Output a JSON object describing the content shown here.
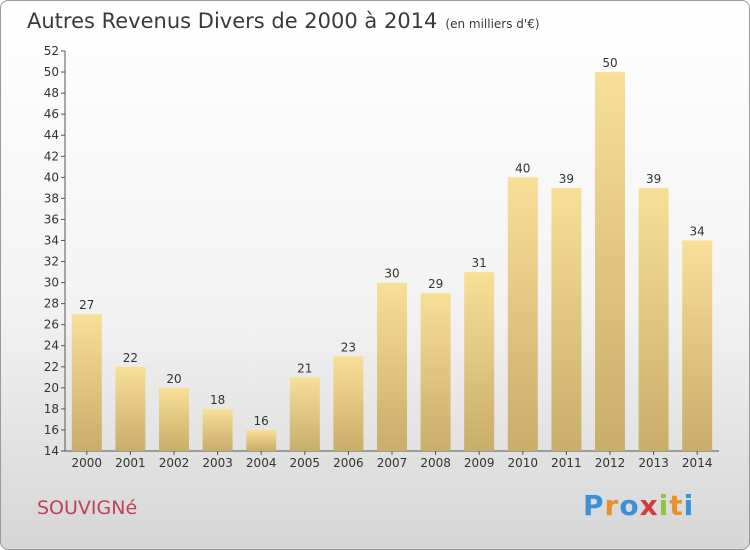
{
  "header": {
    "title": "Autres Revenus Divers de 2000 à 2014",
    "unit": "(en milliers d'€)"
  },
  "footer": {
    "location": "SOUVIGNé",
    "logo_text": "Proxiti"
  },
  "colors": {
    "bar_top": "#f8df98",
    "bar_bottom": "#c9ad6a",
    "axis": "#555555",
    "gridline": "#bbbbbb",
    "location_text": "#c0405a"
  },
  "chart_data": {
    "type": "bar",
    "title": "Autres Revenus Divers de 2000 à 2014",
    "subtitle": "(en milliers d'€)",
    "categories": [
      "2000",
      "2001",
      "2002",
      "2003",
      "2004",
      "2005",
      "2006",
      "2007",
      "2008",
      "2009",
      "2010",
      "2011",
      "2012",
      "2013",
      "2014"
    ],
    "values": [
      27,
      22,
      20,
      18,
      16,
      21,
      23,
      30,
      29,
      31,
      40,
      39,
      50,
      39,
      34
    ],
    "ylim": [
      14,
      52
    ],
    "yticks": [
      14,
      16,
      18,
      20,
      22,
      24,
      26,
      28,
      30,
      32,
      34,
      36,
      38,
      40,
      42,
      44,
      46,
      48,
      50,
      52
    ],
    "grid": false,
    "legend": "none"
  }
}
